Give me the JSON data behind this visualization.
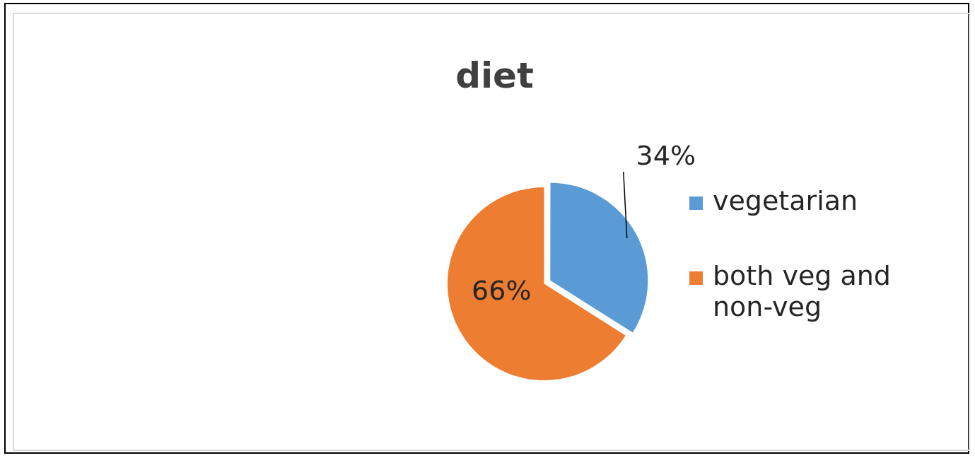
{
  "chart_data": {
    "type": "pie",
    "title": "diet",
    "categories": [
      "vegetarian",
      "both veg and non-veg"
    ],
    "values": [
      34,
      66
    ],
    "colors": [
      "#5b9bd5",
      "#ed7d31"
    ],
    "value_labels": [
      "34%",
      "66%"
    ],
    "legend": "right"
  }
}
